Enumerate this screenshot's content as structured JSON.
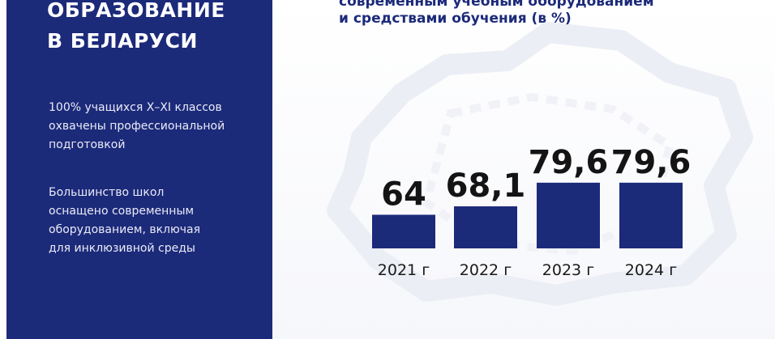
{
  "left_panel": {
    "heading": [
      "ОБРАЗОВАНИЕ",
      "В БЕЛАРУСИ"
    ],
    "paragraph1": [
      "100% учащихся X–XI классов",
      "охвачены профессиональной",
      "подготовкой"
    ],
    "paragraph2": [
      "Большинство школ",
      "оснащено современным",
      "оборудованием, включая",
      "для инклюзивной среды"
    ]
  },
  "colors": {
    "panel": "#1c2a7a",
    "bar": "#1c2a7a",
    "value_text": "#141414",
    "title_text": "#1c2a7a"
  },
  "chart_data": {
    "type": "bar",
    "title": [
      "современным учебным оборудованием",
      "и средствами обучения (в %)"
    ],
    "categories": [
      "2021 г",
      "2022 г",
      "2023 г",
      "2024 г"
    ],
    "values": [
      64,
      68.1,
      79.6,
      79.6
    ],
    "value_labels": [
      "64",
      "68,1",
      "79,6",
      "79,6"
    ],
    "xlabel": "",
    "ylabel": "",
    "grid": false,
    "legend": "none"
  }
}
